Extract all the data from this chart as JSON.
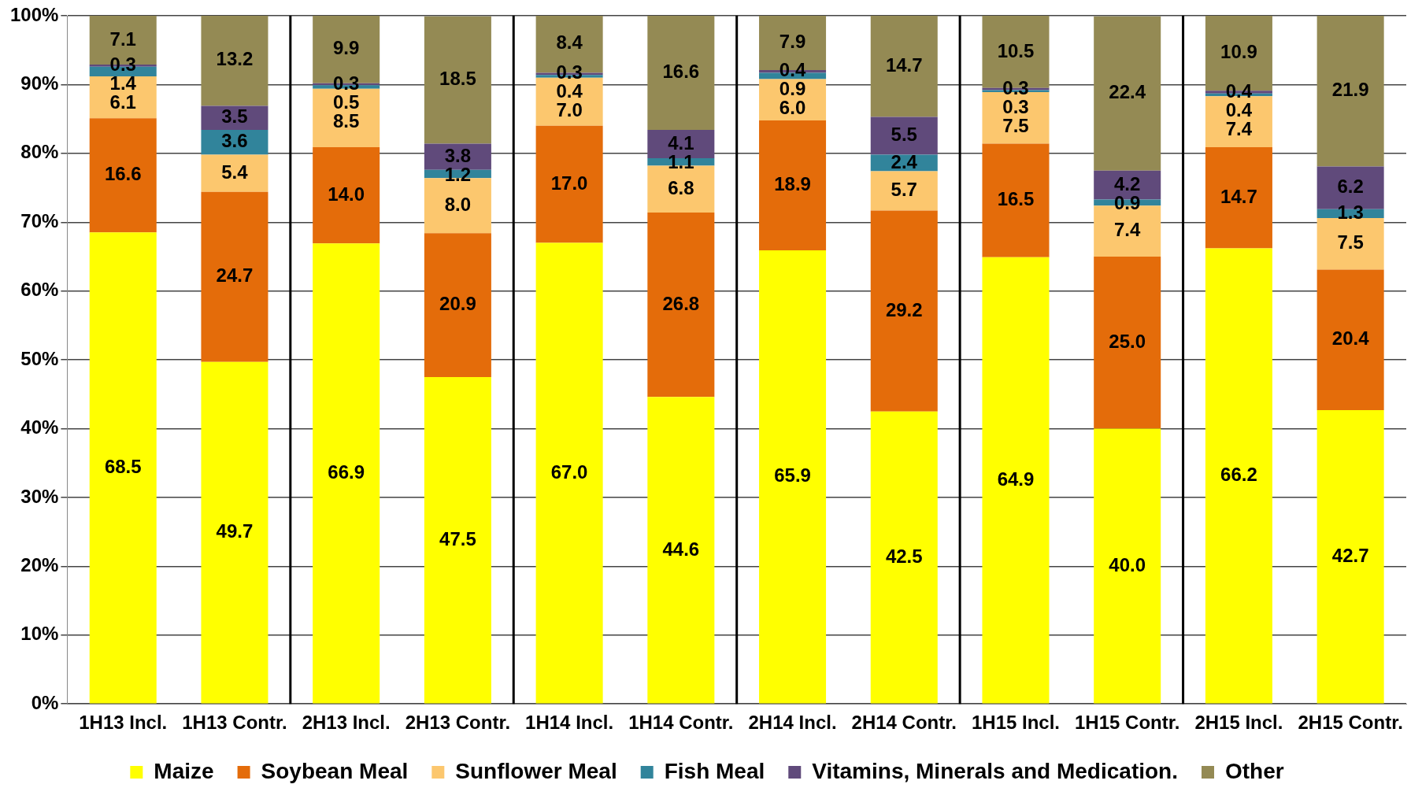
{
  "chart_data": {
    "type": "bar",
    "stacked": true,
    "categories": [
      "1H13 Incl.",
      "1H13 Contr.",
      "2H13 Incl.",
      "2H13 Contr.",
      "1H14 Incl.",
      "1H14 Contr.",
      "2H14 Incl.",
      "2H14 Contr.",
      "1H15 Incl.",
      "1H15 Contr.",
      "2H15 Incl.",
      "2H15 Contr."
    ],
    "series": [
      {
        "name": "Maize",
        "color": "#ffff00",
        "values": [
          68.5,
          49.7,
          66.9,
          47.5,
          67.0,
          44.6,
          65.9,
          42.5,
          64.9,
          40.0,
          66.2,
          42.7
        ],
        "value_labels": [
          "68.5",
          "49.7",
          "66.9",
          "47.5",
          "67.0",
          "44.6",
          "65.9",
          "42.5",
          "64.9",
          "40.0",
          "66.2",
          "42.7"
        ]
      },
      {
        "name": "Soybean Meal",
        "color": "#e46c0a",
        "values": [
          16.6,
          24.7,
          14.0,
          20.9,
          17.0,
          26.8,
          18.9,
          29.2,
          16.5,
          25.0,
          14.7,
          20.4
        ],
        "value_labels": [
          "16.6",
          "24.7",
          "14.0",
          "20.9",
          "17.0",
          "26.8",
          "18.9",
          "29.2",
          "16.5",
          "25.0",
          "14.7",
          "20.4"
        ]
      },
      {
        "name": "Sunflower Meal",
        "color": "#fcc76e",
        "values": [
          6.1,
          5.4,
          8.5,
          8.0,
          7.0,
          6.8,
          6.0,
          5.7,
          7.5,
          7.4,
          7.4,
          7.5
        ],
        "value_labels": [
          "6.1",
          "5.4",
          "8.5",
          "8.0",
          "7.0",
          "6.8",
          "6.0",
          "5.7",
          "7.5",
          "7.4",
          "7.4",
          "7.5"
        ]
      },
      {
        "name": "Fish Meal",
        "color": "#31849b",
        "values": [
          1.4,
          3.6,
          0.5,
          1.2,
          0.4,
          1.1,
          0.9,
          2.4,
          0.3,
          0.9,
          0.4,
          1.3
        ],
        "value_labels": [
          "1.4",
          "3.6",
          "0.5",
          "1.2",
          "0.4",
          "1.1",
          "0.9",
          "2.4",
          "0.3",
          "0.9",
          "0.4",
          "1.3"
        ]
      },
      {
        "name": "Vitamins, Minerals and Medication.",
        "color": "#604a7b",
        "values": [
          0.3,
          3.5,
          0.3,
          3.8,
          0.3,
          4.1,
          0.4,
          5.5,
          0.3,
          4.2,
          0.4,
          6.2
        ],
        "value_labels": [
          "0.3",
          "3.5",
          "0.3",
          "3.8",
          "0.3",
          "4.1",
          "0.4",
          "5.5",
          "0.3",
          "4.2",
          "0.4",
          "6.2"
        ]
      },
      {
        "name": "Other",
        "color": "#948a54",
        "values": [
          7.1,
          13.2,
          9.9,
          18.5,
          8.4,
          16.6,
          7.9,
          14.7,
          10.5,
          22.4,
          10.9,
          21.9
        ],
        "value_labels": [
          "7.1",
          "13.2",
          "9.9",
          "18.5",
          "8.4",
          "16.6",
          "7.9",
          "14.7",
          "10.5",
          "22.4",
          "10.9",
          "21.9"
        ]
      }
    ],
    "ylim": [
      0,
      100
    ],
    "yticks": [
      {
        "value": 0,
        "label": "0%"
      },
      {
        "value": 10,
        "label": "10%"
      },
      {
        "value": 20,
        "label": "20%"
      },
      {
        "value": 30,
        "label": "30%"
      },
      {
        "value": 40,
        "label": "40%"
      },
      {
        "value": 50,
        "label": "50%"
      },
      {
        "value": 60,
        "label": "60%"
      },
      {
        "value": 70,
        "label": "70%"
      },
      {
        "value": 80,
        "label": "80%"
      },
      {
        "value": 90,
        "label": "90%"
      },
      {
        "value": 100,
        "label": "100%"
      }
    ],
    "grid": "y",
    "legend": "bottom"
  }
}
